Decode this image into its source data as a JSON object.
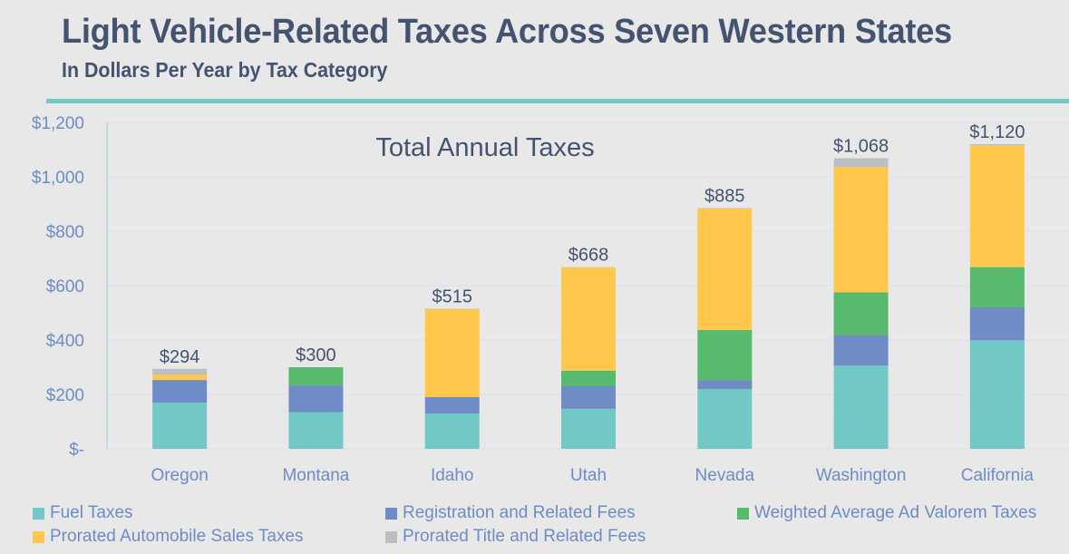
{
  "header": {
    "title": "Light Vehicle-Related Taxes Across Seven Western States",
    "subtitle": "In Dollars Per Year by Tax Category"
  },
  "colors": {
    "title": "#44536f",
    "rule": "#72c8c5",
    "axis_text": "#6e8cc5",
    "total_label": "#44536f",
    "fuel": "#72c8c5",
    "registration": "#6f8cc6",
    "ad_valorem": "#58ba6c",
    "sales": "#ffc74c",
    "title_fees": "#bdbec2"
  },
  "chart_data": {
    "type": "bar",
    "stacked": true,
    "title": "Light Vehicle-Related Taxes Across Seven Western States",
    "subtitle": "In Dollars Per Year by Tax Category",
    "annotation": "Total Annual Taxes",
    "xlabel": "",
    "ylabel": "",
    "ylim": [
      0,
      1200
    ],
    "yticks": [
      0,
      200,
      400,
      600,
      800,
      1000,
      1200
    ],
    "ytick_labels": [
      "$-",
      "$200",
      "$400",
      "$600",
      "$800",
      "$1,000",
      "$1,200"
    ],
    "grid": true,
    "legend_position": "bottom",
    "categories": [
      "Oregon",
      "Montana",
      "Idaho",
      "Utah",
      "Nevada",
      "Washington",
      "California"
    ],
    "series": [
      {
        "name": "Fuel Taxes",
        "color_key": "fuel",
        "values": [
          170,
          135,
          130,
          147,
          220,
          306,
          399
        ]
      },
      {
        "name": "Registration and Related Fees",
        "color_key": "registration",
        "values": [
          83,
          98,
          60,
          83,
          33,
          112,
          121
        ]
      },
      {
        "name": "Weighted Average Ad Valorem Taxes",
        "color_key": "ad_valorem",
        "values": [
          0,
          67,
          0,
          57,
          184,
          157,
          148
        ]
      },
      {
        "name": "Prorated Automobile Sales Taxes",
        "color_key": "sales",
        "values": [
          20,
          0,
          323,
          380,
          446,
          461,
          448
        ]
      },
      {
        "name": "Prorated Title and Related Fees",
        "color_key": "title_fees",
        "values": [
          21,
          0,
          2,
          1,
          2,
          32,
          4
        ]
      }
    ],
    "totals": [
      294,
      300,
      515,
      668,
      885,
      1068,
      1120
    ],
    "total_labels": [
      "$294",
      "$300",
      "$515",
      "$668",
      "$885",
      "$1,068",
      "$1,120"
    ]
  },
  "legend_order": [
    0,
    1,
    2,
    3,
    4
  ]
}
